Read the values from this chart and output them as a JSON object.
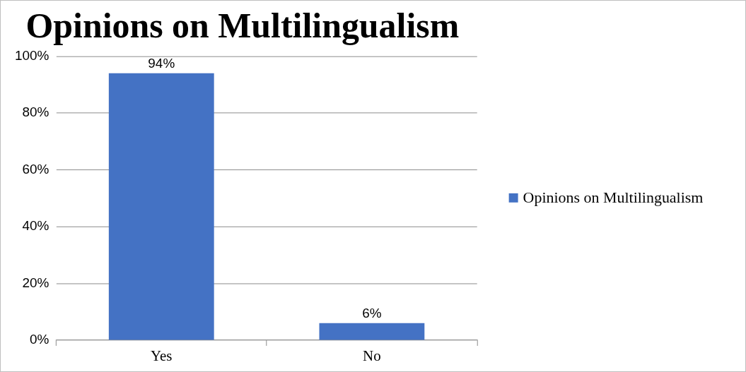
{
  "chart_data": {
    "type": "bar",
    "title": "Opinions on Multilingualism",
    "categories": [
      "Yes",
      "No"
    ],
    "series": [
      {
        "name": "Opinions on Multilingualism",
        "color": "#4472c4",
        "values": [
          94,
          6
        ],
        "value_labels": [
          "94%",
          "6%"
        ]
      }
    ],
    "ylim": [
      0,
      100
    ],
    "yticks": [
      {
        "value": 0,
        "label": "0%"
      },
      {
        "value": 20,
        "label": "20%"
      },
      {
        "value": 40,
        "label": "40%"
      },
      {
        "value": 60,
        "label": "60%"
      },
      {
        "value": 80,
        "label": "80%"
      },
      {
        "value": 100,
        "label": "100%"
      }
    ],
    "grid": "y",
    "legend": "right"
  }
}
